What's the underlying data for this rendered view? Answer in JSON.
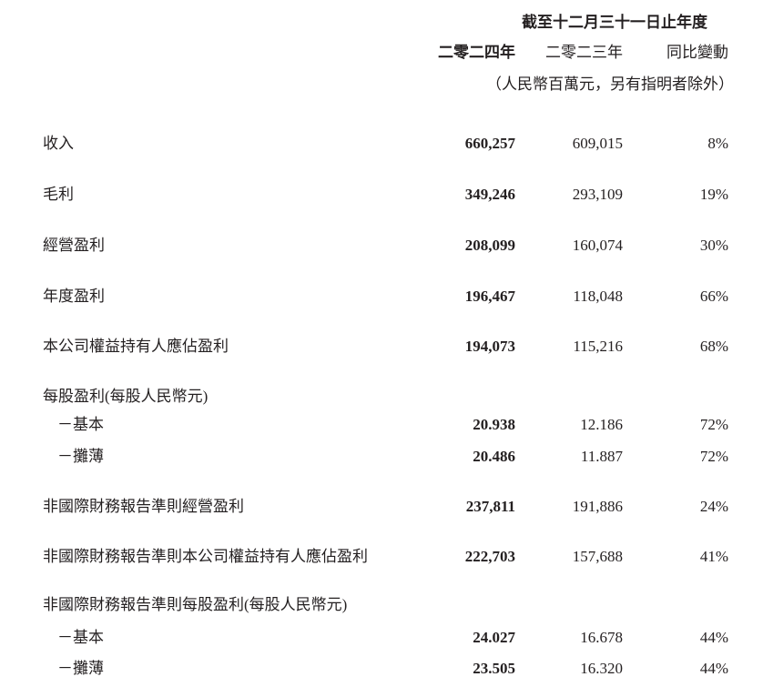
{
  "header": {
    "period": "截至十二月三十一日止年度",
    "col_2024": "二零二四年",
    "col_2023": "二零二三年",
    "col_change": "同比變動",
    "unit_note": "（人民幣百萬元，另有指明者除外）"
  },
  "rows": [
    {
      "label": "收入",
      "y2024": "660,257",
      "y2023": "609,015",
      "change": "8%"
    },
    {
      "label": "毛利",
      "y2024": "349,246",
      "y2023": "293,109",
      "change": "19%"
    },
    {
      "label": "經營盈利",
      "y2024": "208,099",
      "y2023": "160,074",
      "change": "30%"
    },
    {
      "label": "年度盈利",
      "y2024": "196,467",
      "y2023": "118,048",
      "change": "66%"
    },
    {
      "label": "本公司權益持有人應佔盈利",
      "y2024": "194,073",
      "y2023": "115,216",
      "change": "68%"
    },
    {
      "label": "每股盈利(每股人民幣元)"
    },
    {
      "label": "－基本",
      "sub": true,
      "y2024": "20.938",
      "y2023": "12.186",
      "change": "72%"
    },
    {
      "label": "－攤薄",
      "sub": true,
      "y2024": "20.486",
      "y2023": "11.887",
      "change": "72%"
    },
    {
      "label": "非國際財務報告準則經營盈利",
      "y2024": "237,811",
      "y2023": "191,886",
      "change": "24%"
    },
    {
      "label": "非國際財務報告準則本公司權益持有人應佔盈利",
      "y2024": "222,703",
      "y2023": "157,688",
      "change": "41%"
    },
    {
      "label": "非國際財務報告準則每股盈利(每股人民幣元)"
    },
    {
      "label": "－基本",
      "sub": true,
      "y2024": "24.027",
      "y2023": "16.678",
      "change": "44%"
    },
    {
      "label": "－攤薄",
      "sub": true,
      "y2024": "23.505",
      "y2023": "16.320",
      "change": "44%"
    }
  ]
}
